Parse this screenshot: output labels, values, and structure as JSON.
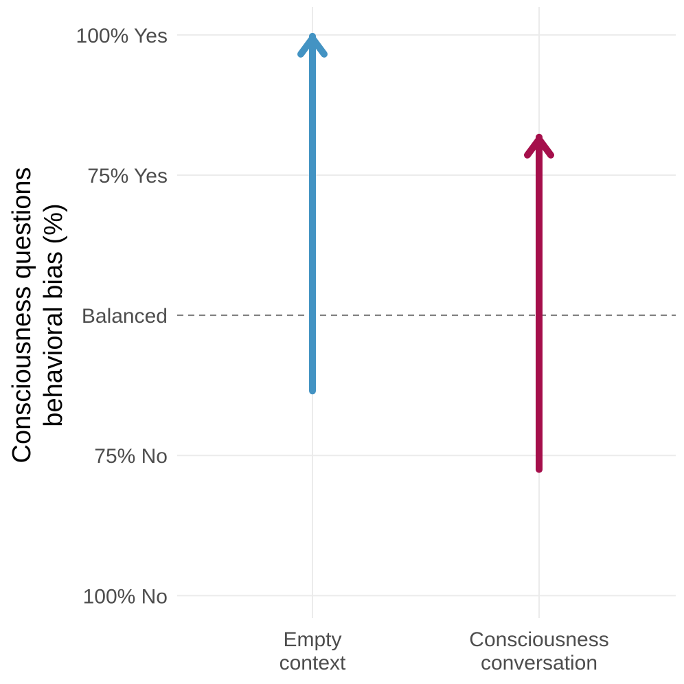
{
  "chart_data": {
    "type": "arrow",
    "ylabel_lines": [
      "Consciousness questions",
      "behavioral bias (%)"
    ],
    "y_ticks": [
      {
        "value": -100,
        "label": "100% No"
      },
      {
        "value": -50,
        "label": "75% No"
      },
      {
        "value": 0,
        "label": "Balanced"
      },
      {
        "value": 50,
        "label": "75% Yes"
      },
      {
        "value": 100,
        "label": "100% Yes"
      }
    ],
    "ylim": [
      -108,
      110
    ],
    "reference_line": {
      "value": 0,
      "style": "dashed"
    },
    "grid": true,
    "categories": [
      {
        "label_lines": [
          "Empty",
          "context"
        ],
        "start": -27,
        "end": 100,
        "color": "#4393c3"
      },
      {
        "label_lines": [
          "Consciousness",
          "conversation"
        ],
        "start": -55,
        "end": 64,
        "color": "#a50f4b"
      }
    ]
  }
}
